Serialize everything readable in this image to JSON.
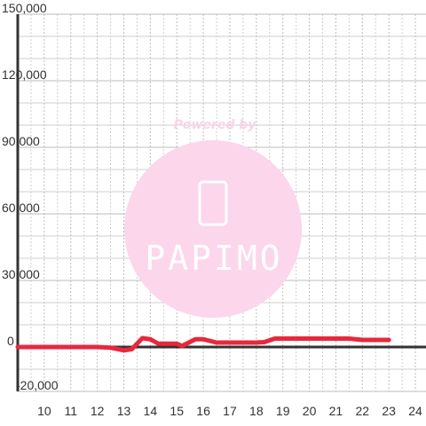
{
  "chart_data": {
    "type": "line",
    "watermark": {
      "top": "Powered by",
      "logo": "PAPIMO"
    },
    "x": [
      9,
      10,
      11,
      12,
      12.5,
      13,
      13.3,
      13.7,
      14,
      14.3,
      15,
      15.2,
      15.7,
      16,
      16.5,
      17,
      18,
      18.3,
      18.7,
      19,
      20,
      21,
      21.5,
      22,
      23
    ],
    "series": [
      {
        "color": "#e8283c",
        "values": [
          0,
          0,
          0,
          0,
          -300,
          -1500,
          -1000,
          4000,
          3500,
          1500,
          1500,
          500,
          3500,
          3500,
          2000,
          2000,
          2000,
          2200,
          3800,
          3800,
          3800,
          3800,
          3800,
          3200,
          3200
        ]
      }
    ],
    "xlim": [
      9,
      24.4
    ],
    "xticks": [
      10,
      11,
      12,
      13,
      14,
      15,
      16,
      17,
      18,
      19,
      20,
      21,
      22,
      23,
      24
    ],
    "minor_xticks": [
      9.5,
      10.5,
      11.5,
      12.5,
      13.5,
      14.5,
      15.5,
      16.5,
      17.5,
      18.5,
      19.5,
      20.5,
      21.5,
      22.5,
      23.5
    ],
    "ylim": [
      -20000,
      150000
    ],
    "yticks": [
      {
        "value": -20000,
        "label": "-20,000"
      },
      0,
      {
        "value": 30000,
        "label": "30,000"
      },
      {
        "value": 60000,
        "label": "60,000"
      },
      {
        "value": 90000,
        "label": "90,000"
      },
      {
        "value": 120000,
        "label": "120,000"
      },
      {
        "value": 150000,
        "label": "150,000"
      }
    ],
    "minor_yticks": [
      -10000,
      10000,
      20000,
      40000,
      50000,
      70000,
      80000,
      100000,
      110000,
      130000,
      140000
    ],
    "grid": true
  }
}
